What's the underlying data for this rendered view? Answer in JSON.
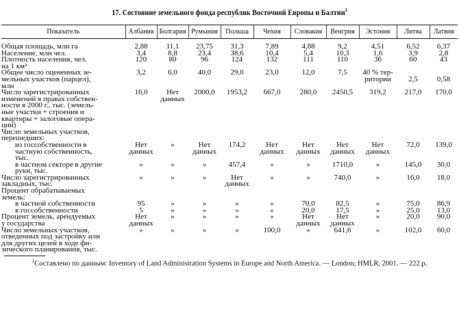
{
  "title": "17. Состояние земельного фонда республик Восточной Европы и Балтии",
  "title_note_mark": "1",
  "columns": [
    "Показатель",
    "Албания",
    "Болгария",
    "Румыния",
    "Польша",
    "Чехия",
    "Словакия",
    "Венгрия",
    "Эстония",
    "Литва",
    "Латвия"
  ],
  "rows": [
    {
      "label": "Общая площадь, млн га",
      "indent": false,
      "values": [
        "2,88",
        "11,1",
        "23,75",
        "31,3",
        "7,89",
        "4,88",
        "9,2",
        "4,51",
        "6,52",
        "6,37"
      ]
    },
    {
      "label": "Население, млн чел.",
      "indent": false,
      "values": [
        "3,4",
        "8,8",
        "23,4",
        "38,6",
        "10,4",
        "5,4",
        "10,3",
        "1,6",
        "3,9",
        "2,8"
      ]
    },
    {
      "label": "Плотность населения, чел.\nна 1 км²",
      "indent": false,
      "values": [
        "120",
        "80",
        "96",
        "124",
        "132",
        "111",
        "110",
        "36",
        "60",
        "43"
      ]
    },
    {
      "label": "Общее число оцененных зе-\nмельных участков (парцел),\nмлн",
      "indent": false,
      "values": [
        "3,2",
        "6,0",
        "40,0",
        "29,0",
        "23,0",
        "12,0",
        "7,5",
        "40 % тер-\nритории",
        "\n2,5",
        "\n0,58"
      ]
    },
    {
      "label": "Число зарегистрированных\nизменений в правах собствен-\nности в 2000 г., тыс. (земель-\nные участки + строения и\nквартиры + залоговые опера-\nции)",
      "indent": false,
      "values": [
        "16,0",
        "Нет\nданных",
        "2000,0",
        "1953,2",
        "667,0",
        "280,0",
        "2450,5",
        "319,2",
        "217,0",
        "170,0"
      ]
    },
    {
      "label": "Число земельных участков,\nперешедших:",
      "indent": false,
      "values": [
        "",
        "",
        "",
        "",
        "",
        "",
        "",
        "",
        "",
        ""
      ]
    },
    {
      "label": "из госсобственности в\nчастную собственность,\nтыс.",
      "indent": true,
      "values": [
        "Нет\nданных",
        "»",
        "Нет\nданных",
        "174,2",
        "Нет\nданных",
        "Нет\nданных",
        "Нет\nданных",
        "Нет\nданных",
        "72,0",
        "139,0"
      ]
    },
    {
      "label": "в частном секторе в другие\nруки, тыс.",
      "indent": true,
      "values": [
        "»",
        "»",
        "»",
        "457,4",
        "»",
        "»",
        "1710,0",
        "»",
        "145,0",
        "30,0"
      ]
    },
    {
      "label": "Число зарегистрированных\nзакладных, тыс.",
      "indent": false,
      "values": [
        "»",
        "»",
        "»",
        "Нет\nданных",
        "»",
        "»",
        "740,0",
        "»",
        "16,0",
        "18,0"
      ]
    },
    {
      "label": "Процент обрабатываемых\nземель:",
      "indent": false,
      "values": [
        "",
        "",
        "",
        "",
        "",
        "",
        "",
        "",
        "",
        ""
      ]
    },
    {
      "label": "в частной собственности",
      "indent": true,
      "values": [
        "95",
        "»",
        "»",
        "»",
        "»",
        "70,0",
        "82,5",
        "»",
        "75,0",
        "86,9"
      ]
    },
    {
      "label": "в госсобственности",
      "indent": true,
      "values": [
        "5",
        "»",
        "»",
        "»",
        "»",
        "20,0",
        "17,5",
        "»",
        "25,0",
        "13,0"
      ]
    },
    {
      "label": "Процент земель, арендуемых\nу государства",
      "indent": false,
      "values": [
        "Нет\nданных",
        "»",
        "»",
        "»",
        "»",
        "Нет\nданных",
        "Нет\nданных",
        "»",
        "20,0",
        "90,0"
      ]
    },
    {
      "label": "Число земельных участков,\nотведенных под застройку или\nдля других целей в ходе фи-\nзического планирования, тыс.",
      "indent": false,
      "values": [
        "»",
        "»",
        "»",
        "»",
        "100,0",
        "»",
        "641,6",
        "»",
        "102,0",
        "60,0"
      ]
    }
  ],
  "footnote_mark": "1",
  "footnote": "Составлено по данным: Inventory of Land Administration Systems in Europe and North America. — London; HMLR, 2001. — 222 p."
}
